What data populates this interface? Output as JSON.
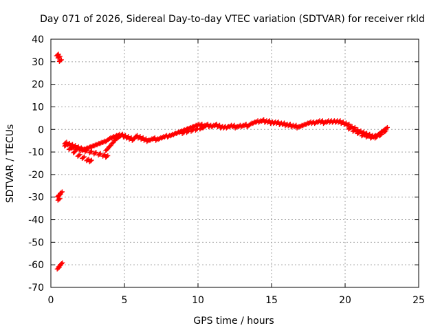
{
  "chart_data": {
    "type": "scatter",
    "title": "Day 071 of 2026, Sidereal Day-to-day VTEC variation (SDTVAR) for receiver rkld",
    "xlabel": "GPS time / hours",
    "ylabel": "SDTVAR / TECUs",
    "xlim": [
      0,
      25
    ],
    "ylim": [
      -70,
      40
    ],
    "xticks": [
      0,
      5,
      10,
      15,
      20,
      25
    ],
    "yticks": [
      -70,
      -60,
      -50,
      -40,
      -30,
      -20,
      -10,
      0,
      10,
      20,
      30,
      40
    ],
    "grid": true,
    "marker": "plus",
    "color": "#ff0000",
    "series": [
      {
        "name": "SDTVAR",
        "points": [
          [
            0.45,
            33
          ],
          [
            0.55,
            32
          ],
          [
            0.65,
            30.5
          ],
          [
            0.5,
            -29.5
          ],
          [
            0.6,
            -29
          ],
          [
            0.55,
            -31
          ],
          [
            0.7,
            -28
          ],
          [
            0.5,
            -61.5
          ],
          [
            0.6,
            -60.5
          ],
          [
            0.72,
            -59.5
          ],
          [
            1.0,
            -6
          ],
          [
            1.2,
            -6.5
          ],
          [
            1.4,
            -7
          ],
          [
            1.6,
            -7.5
          ],
          [
            1.8,
            -8
          ],
          [
            2.0,
            -8.5
          ],
          [
            2.2,
            -9
          ],
          [
            2.4,
            -8.5
          ],
          [
            2.6,
            -8
          ],
          [
            2.8,
            -7.5
          ],
          [
            3.0,
            -7
          ],
          [
            3.2,
            -6.5
          ],
          [
            3.4,
            -6
          ],
          [
            3.6,
            -5.5
          ],
          [
            3.8,
            -5
          ],
          [
            4.0,
            -4
          ],
          [
            4.2,
            -3.5
          ],
          [
            4.4,
            -3
          ],
          [
            4.6,
            -2.5
          ],
          [
            4.8,
            -2.5
          ],
          [
            1.0,
            -7
          ],
          [
            1.3,
            -8.5
          ],
          [
            1.6,
            -10
          ],
          [
            1.9,
            -11.5
          ],
          [
            2.2,
            -12.5
          ],
          [
            2.5,
            -13.5
          ],
          [
            2.7,
            -14
          ],
          [
            1.5,
            -8
          ],
          [
            1.8,
            -8.5
          ],
          [
            2.1,
            -9
          ],
          [
            2.4,
            -9.5
          ],
          [
            2.7,
            -10
          ],
          [
            3.0,
            -10.5
          ],
          [
            3.3,
            -11
          ],
          [
            3.6,
            -11.5
          ],
          [
            3.8,
            -12
          ],
          [
            3.8,
            -9
          ],
          [
            4.0,
            -7.5
          ],
          [
            4.2,
            -6
          ],
          [
            4.4,
            -4.5
          ],
          [
            4.6,
            -3.5
          ],
          [
            4.8,
            -2.5
          ],
          [
            5.0,
            -3
          ],
          [
            5.2,
            -3.5
          ],
          [
            5.4,
            -4
          ],
          [
            5.6,
            -4.5
          ],
          [
            5.8,
            -3
          ],
          [
            6.0,
            -3.5
          ],
          [
            6.2,
            -4
          ],
          [
            6.4,
            -4.5
          ],
          [
            6.6,
            -5
          ],
          [
            6.8,
            -4.5
          ],
          [
            7.0,
            -4
          ],
          [
            7.2,
            -4.5
          ],
          [
            7.4,
            -4
          ],
          [
            7.6,
            -3.5
          ],
          [
            7.8,
            -3
          ],
          [
            8.0,
            -3
          ],
          [
            8.2,
            -2.5
          ],
          [
            8.4,
            -2
          ],
          [
            8.6,
            -1.5
          ],
          [
            8.8,
            -1
          ],
          [
            9.0,
            -0.5
          ],
          [
            9.2,
            0
          ],
          [
            9.4,
            0.5
          ],
          [
            9.6,
            1
          ],
          [
            9.8,
            1.5
          ],
          [
            10.0,
            2
          ],
          [
            10.2,
            2
          ],
          [
            9.0,
            -1.5
          ],
          [
            9.3,
            -1
          ],
          [
            9.6,
            -0.5
          ],
          [
            9.9,
            0
          ],
          [
            10.2,
            0.5
          ],
          [
            10.4,
            1
          ],
          [
            10.4,
            1.5
          ],
          [
            10.6,
            2
          ],
          [
            10.8,
            1.5
          ],
          [
            11.0,
            1.5
          ],
          [
            11.2,
            2
          ],
          [
            11.4,
            1.5
          ],
          [
            11.6,
            1
          ],
          [
            11.8,
            1
          ],
          [
            12.0,
            1
          ],
          [
            12.2,
            1.5
          ],
          [
            12.4,
            1.5
          ],
          [
            12.6,
            1
          ],
          [
            12.8,
            1.5
          ],
          [
            13.0,
            1.5
          ],
          [
            13.2,
            2
          ],
          [
            13.4,
            1.5
          ],
          [
            13.6,
            2.5
          ],
          [
            13.8,
            3
          ],
          [
            14.0,
            3.5
          ],
          [
            14.2,
            3.5
          ],
          [
            14.4,
            4
          ],
          [
            14.6,
            3.5
          ],
          [
            14.8,
            3.5
          ],
          [
            15.0,
            3
          ],
          [
            15.2,
            3
          ],
          [
            15.4,
            3
          ],
          [
            15.6,
            2.5
          ],
          [
            15.8,
            2.5
          ],
          [
            16.0,
            2
          ],
          [
            16.2,
            2
          ],
          [
            16.4,
            1.5
          ],
          [
            16.6,
            1.5
          ],
          [
            16.8,
            1
          ],
          [
            17.0,
            1.5
          ],
          [
            17.2,
            2
          ],
          [
            17.4,
            2.5
          ],
          [
            17.6,
            3
          ],
          [
            17.8,
            3
          ],
          [
            18.0,
            3
          ],
          [
            18.2,
            3.5
          ],
          [
            18.4,
            3.5
          ],
          [
            18.6,
            3
          ],
          [
            18.8,
            3.5
          ],
          [
            19.0,
            3.5
          ],
          [
            19.2,
            3.5
          ],
          [
            19.4,
            3.5
          ],
          [
            19.6,
            3.5
          ],
          [
            19.8,
            3
          ],
          [
            20.0,
            2.5
          ],
          [
            20.2,
            2
          ],
          [
            20.4,
            1
          ],
          [
            20.6,
            0.5
          ],
          [
            20.8,
            -0.5
          ],
          [
            21.0,
            -1
          ],
          [
            21.2,
            -1.5
          ],
          [
            21.4,
            -2
          ],
          [
            21.6,
            -2.5
          ],
          [
            21.8,
            -3
          ],
          [
            22.0,
            -3
          ],
          [
            22.2,
            -2.5
          ],
          [
            22.4,
            -1.5
          ],
          [
            22.6,
            -0.5
          ],
          [
            22.8,
            0.5
          ],
          [
            20.3,
            0.5
          ],
          [
            20.6,
            -0.5
          ],
          [
            20.9,
            -1.5
          ],
          [
            21.2,
            -2.5
          ],
          [
            21.5,
            -3
          ],
          [
            21.8,
            -3.5
          ],
          [
            22.1,
            -3.5
          ],
          [
            22.4,
            -2.5
          ],
          [
            22.7,
            -1
          ]
        ]
      }
    ]
  }
}
